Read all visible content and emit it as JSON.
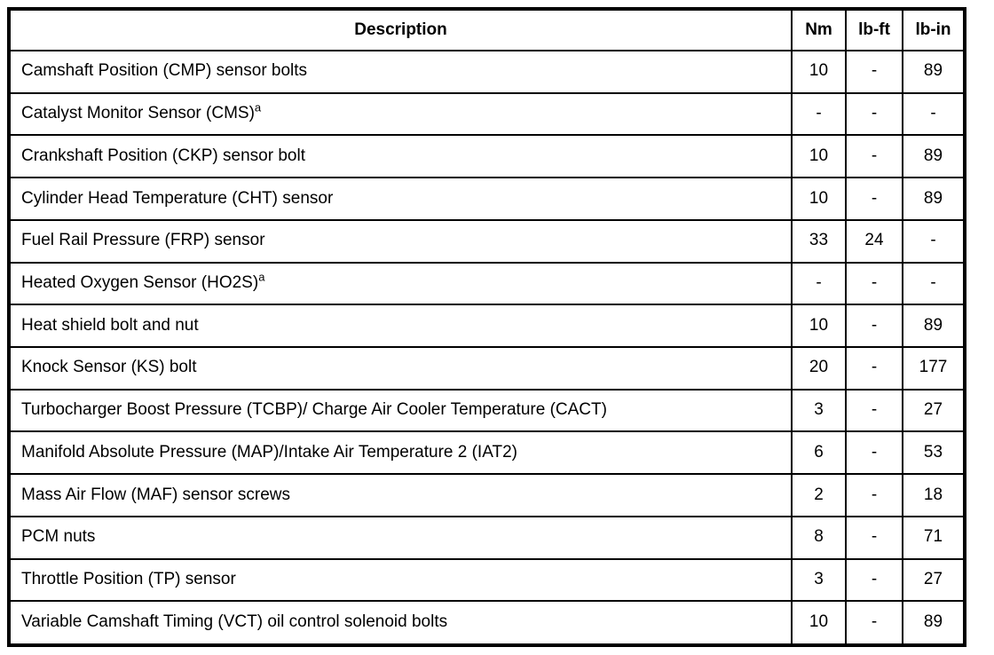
{
  "table": {
    "columns": [
      "Description",
      "Nm",
      "lb-ft",
      "lb-in"
    ],
    "rows": [
      {
        "desc": "Camshaft Position (CMP) sensor bolts",
        "sup": "",
        "nm": "10",
        "lbft": "-",
        "lbin": "89"
      },
      {
        "desc": "Catalyst Monitor Sensor (CMS)",
        "sup": "a",
        "nm": "-",
        "lbft": "-",
        "lbin": "-"
      },
      {
        "desc": "Crankshaft Position (CKP) sensor bolt",
        "sup": "",
        "nm": "10",
        "lbft": "-",
        "lbin": "89"
      },
      {
        "desc": "Cylinder Head Temperature (CHT) sensor",
        "sup": "",
        "nm": "10",
        "lbft": "-",
        "lbin": "89"
      },
      {
        "desc": "Fuel Rail Pressure (FRP) sensor",
        "sup": "",
        "nm": "33",
        "lbft": "24",
        "lbin": "-"
      },
      {
        "desc": "Heated Oxygen Sensor (HO2S)",
        "sup": "a",
        "nm": "-",
        "lbft": "-",
        "lbin": "-"
      },
      {
        "desc": "Heat shield bolt and nut",
        "sup": "",
        "nm": "10",
        "lbft": "-",
        "lbin": "89"
      },
      {
        "desc": "Knock Sensor (KS) bolt",
        "sup": "",
        "nm": "20",
        "lbft": "-",
        "lbin": "177"
      },
      {
        "desc": "Turbocharger Boost Pressure (TCBP)/ Charge Air Cooler Temperature (CACT)",
        "sup": "",
        "nm": "3",
        "lbft": "-",
        "lbin": "27"
      },
      {
        "desc": "Manifold Absolute Pressure (MAP)/Intake Air Temperature 2 (IAT2)",
        "sup": "",
        "nm": "6",
        "lbft": "-",
        "lbin": "53"
      },
      {
        "desc": "Mass Air Flow (MAF) sensor screws",
        "sup": "",
        "nm": "2",
        "lbft": "-",
        "lbin": "18"
      },
      {
        "desc": "PCM nuts",
        "sup": "",
        "nm": "8",
        "lbft": "-",
        "lbin": "71"
      },
      {
        "desc": "Throttle Position (TP) sensor",
        "sup": "",
        "nm": "3",
        "lbft": "-",
        "lbin": "27"
      },
      {
        "desc": "Variable Camshaft Timing (VCT) oil control solenoid bolts",
        "sup": "",
        "nm": "10",
        "lbft": "-",
        "lbin": "89"
      }
    ]
  }
}
